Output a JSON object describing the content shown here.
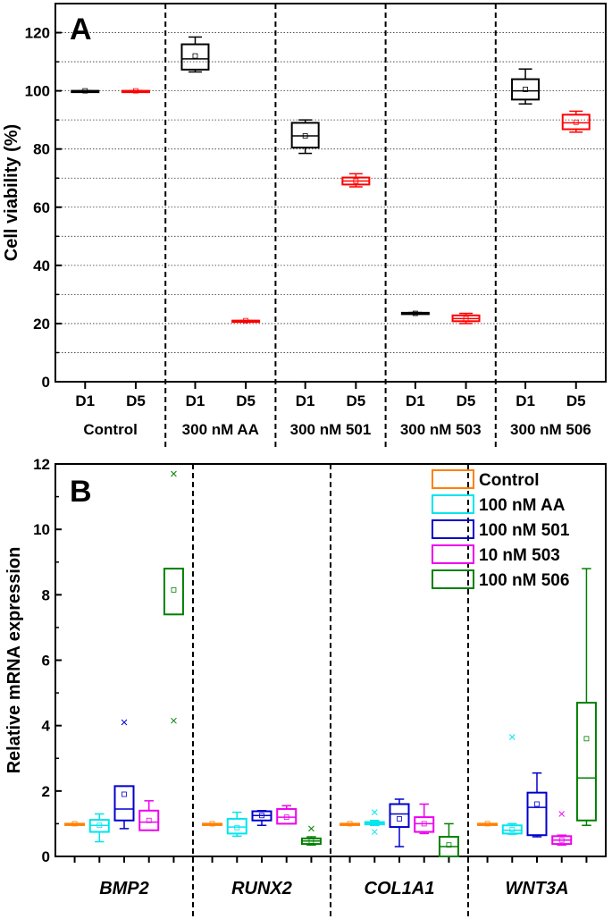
{
  "chart_data": [
    {
      "type": "box",
      "panel_label": "A",
      "ylabel": "Cell viability (%)",
      "ylim": [
        0,
        130
      ],
      "yticks": [
        0,
        20,
        40,
        60,
        80,
        100,
        120
      ],
      "groups": [
        {
          "label": "Control",
          "subcategories": [
            "D1",
            "D5"
          ]
        },
        {
          "label": "300 nM AA",
          "subcategories": [
            "D1",
            "D5"
          ]
        },
        {
          "label": "300 nM 501",
          "subcategories": [
            "D1",
            "D5"
          ]
        },
        {
          "label": "300 nM 503",
          "subcategories": [
            "D1",
            "D5"
          ]
        },
        {
          "label": "300 nM 506",
          "subcategories": [
            "D1",
            "D5"
          ]
        }
      ],
      "colors": {
        "D1": "#000000",
        "D5": "#ff0000"
      },
      "boxes": [
        {
          "group": 0,
          "sub": "D1",
          "min": 100,
          "q1": 100,
          "median": 100,
          "q3": 100,
          "max": 100,
          "mean": 100
        },
        {
          "group": 0,
          "sub": "D5",
          "min": 100,
          "q1": 100,
          "median": 100,
          "q3": 100,
          "max": 100,
          "mean": 100
        },
        {
          "group": 1,
          "sub": "D1",
          "min": 106.5,
          "q1": 107.3,
          "median": 111,
          "q3": 116,
          "max": 118.5,
          "mean": 112
        },
        {
          "group": 1,
          "sub": "D5",
          "min": 21,
          "q1": 21,
          "median": 21,
          "q3": 21,
          "max": 21,
          "mean": 21
        },
        {
          "group": 2,
          "sub": "D1",
          "min": 78.5,
          "q1": 80.5,
          "median": 84.5,
          "q3": 89,
          "max": 90,
          "mean": 84.5
        },
        {
          "group": 2,
          "sub": "D5",
          "min": 67,
          "q1": 67.8,
          "median": 69,
          "q3": 70.2,
          "max": 71.5,
          "mean": 69
        },
        {
          "group": 3,
          "sub": "D1",
          "min": 23.3,
          "q1": 23.3,
          "median": 23.5,
          "q3": 23.7,
          "max": 23.8,
          "mean": 23.5
        },
        {
          "group": 3,
          "sub": "D5",
          "min": 20,
          "q1": 20.8,
          "median": 21.7,
          "q3": 22.8,
          "max": 23.5,
          "mean": 21.7
        },
        {
          "group": 4,
          "sub": "D1",
          "min": 95.5,
          "q1": 97,
          "median": 100,
          "q3": 104,
          "max": 107.5,
          "mean": 100.5
        },
        {
          "group": 4,
          "sub": "D5",
          "min": 85.8,
          "q1": 86.8,
          "median": 89,
          "q3": 91.8,
          "max": 93,
          "mean": 89.2
        }
      ]
    },
    {
      "type": "box",
      "panel_label": "B",
      "ylabel": "Relative mRNA expression",
      "ylim": [
        0,
        12
      ],
      "yticks": [
        0,
        2,
        4,
        6,
        8,
        10,
        12
      ],
      "categories": [
        "BMP2",
        "RUNX2",
        "COL1A1",
        "WNT3A"
      ],
      "series": [
        {
          "name": "Control",
          "color": "#ff8000"
        },
        {
          "name": "100 nM AA",
          "color": "#00e5ee"
        },
        {
          "name": "100 nM 501",
          "color": "#0000cd"
        },
        {
          "name": "10 nM 503",
          "color": "#ee00ee"
        },
        {
          "name": "100 nM 506",
          "color": "#008000"
        }
      ],
      "legend_position": "top-right",
      "boxes": [
        {
          "category": 0,
          "series": 0,
          "min": 1,
          "q1": 1,
          "median": 1,
          "q3": 1,
          "max": 1,
          "mean": 1,
          "outliers": []
        },
        {
          "category": 0,
          "series": 1,
          "min": 0.45,
          "q1": 0.75,
          "median": 0.95,
          "q3": 1.12,
          "max": 1.3,
          "mean": 0.95,
          "outliers": []
        },
        {
          "category": 0,
          "series": 2,
          "min": 0.85,
          "q1": 1.1,
          "median": 1.45,
          "q3": 2.15,
          "max": 2.15,
          "mean": 1.9,
          "outliers": [
            4.1
          ]
        },
        {
          "category": 0,
          "series": 3,
          "min": 0.8,
          "q1": 0.8,
          "median": 1.05,
          "q3": 1.4,
          "max": 1.7,
          "mean": 1.1,
          "outliers": []
        },
        {
          "category": 0,
          "series": 4,
          "min": 7.4,
          "q1": 7.4,
          "median": 8.8,
          "q3": 8.8,
          "max": 8.8,
          "mean": 8.15,
          "outliers": [
            11.7,
            4.15
          ]
        },
        {
          "category": 1,
          "series": 0,
          "min": 1,
          "q1": 1,
          "median": 1,
          "q3": 1,
          "max": 1,
          "mean": 1,
          "outliers": []
        },
        {
          "category": 1,
          "series": 1,
          "min": 0.62,
          "q1": 0.7,
          "median": 0.9,
          "q3": 1.15,
          "max": 1.35,
          "mean": 0.88,
          "outliers": []
        },
        {
          "category": 1,
          "series": 2,
          "min": 0.95,
          "q1": 1.1,
          "median": 1.25,
          "q3": 1.38,
          "max": 1.4,
          "mean": 1.25,
          "outliers": []
        },
        {
          "category": 1,
          "series": 3,
          "min": 1.0,
          "q1": 1.0,
          "median": 1.2,
          "q3": 1.45,
          "max": 1.55,
          "mean": 1.2,
          "outliers": []
        },
        {
          "category": 1,
          "series": 4,
          "min": 0.35,
          "q1": 0.38,
          "median": 0.47,
          "q3": 0.55,
          "max": 0.6,
          "mean": 0.47,
          "outliers": [
            0.85
          ]
        },
        {
          "category": 2,
          "series": 0,
          "min": 1,
          "q1": 1,
          "median": 1,
          "q3": 1,
          "max": 1,
          "mean": 1,
          "outliers": []
        },
        {
          "category": 2,
          "series": 1,
          "min": 0.95,
          "q1": 0.98,
          "median": 1.02,
          "q3": 1.05,
          "max": 1.1,
          "mean": 1.02,
          "outliers": [
            1.35,
            0.75
          ]
        },
        {
          "category": 2,
          "series": 2,
          "min": 0.3,
          "q1": 0.9,
          "median": 1.3,
          "q3": 1.6,
          "max": 1.75,
          "mean": 1.15,
          "outliers": []
        },
        {
          "category": 2,
          "series": 3,
          "min": 0.7,
          "q1": 0.75,
          "median": 1.0,
          "q3": 1.2,
          "max": 1.6,
          "mean": 1.0,
          "outliers": []
        },
        {
          "category": 2,
          "series": 4,
          "min": 0,
          "q1": 0.0,
          "median": 0.3,
          "q3": 0.6,
          "max": 1.0,
          "mean": 0.35,
          "outliers": []
        },
        {
          "category": 3,
          "series": 0,
          "min": 1,
          "q1": 1,
          "median": 1,
          "q3": 1,
          "max": 1,
          "mean": 1,
          "outliers": []
        },
        {
          "category": 3,
          "series": 1,
          "min": 0.68,
          "q1": 0.7,
          "median": 0.8,
          "q3": 0.95,
          "max": 1.0,
          "mean": 0.82,
          "outliers": [
            3.65
          ]
        },
        {
          "category": 3,
          "series": 2,
          "min": 0.6,
          "q1": 0.65,
          "median": 1.5,
          "q3": 1.95,
          "max": 2.55,
          "mean": 1.6,
          "outliers": []
        },
        {
          "category": 3,
          "series": 3,
          "min": 0.35,
          "q1": 0.38,
          "median": 0.5,
          "q3": 0.62,
          "max": 0.65,
          "mean": 0.5,
          "outliers": [
            1.3
          ]
        },
        {
          "category": 3,
          "series": 4,
          "min": 0.95,
          "q1": 1.1,
          "median": 2.4,
          "q3": 4.7,
          "max": 8.8,
          "mean": 3.6,
          "outliers": []
        }
      ]
    }
  ]
}
